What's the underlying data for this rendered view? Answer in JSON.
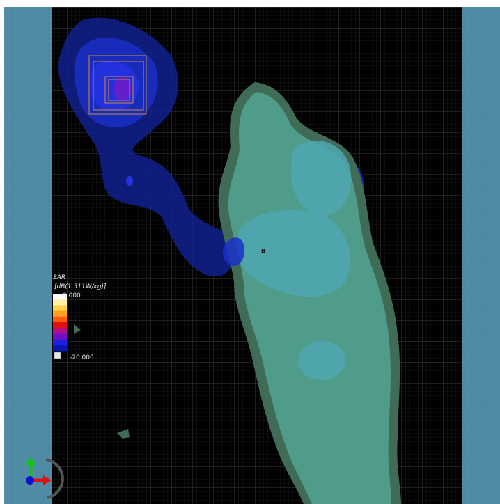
{
  "legend": {
    "title": "SAR",
    "unit": "[dB(1.511W/kg)]",
    "max_label": "0.000",
    "min_label": "-20.000",
    "colors": [
      "#ffffff",
      "#fff2a8",
      "#ffd24a",
      "#ffa020",
      "#ff5a10",
      "#e01010",
      "#b0108a",
      "#7010c0",
      "#2020e0",
      "#0818b0"
    ]
  },
  "marker": {
    "label": "B"
  },
  "colors": {
    "side_panel": "#4e8aa3",
    "background": "#000000",
    "grid": "#3a3a3a",
    "body_outer": "#3f6b57",
    "body_inner": "#4f9c8a",
    "body_core": "#4fa7b2",
    "field_low": "#10208e",
    "field_mid": "#1a2fc8",
    "field_high": "#5a1cc8",
    "antenna_box": "#d08a3a"
  }
}
